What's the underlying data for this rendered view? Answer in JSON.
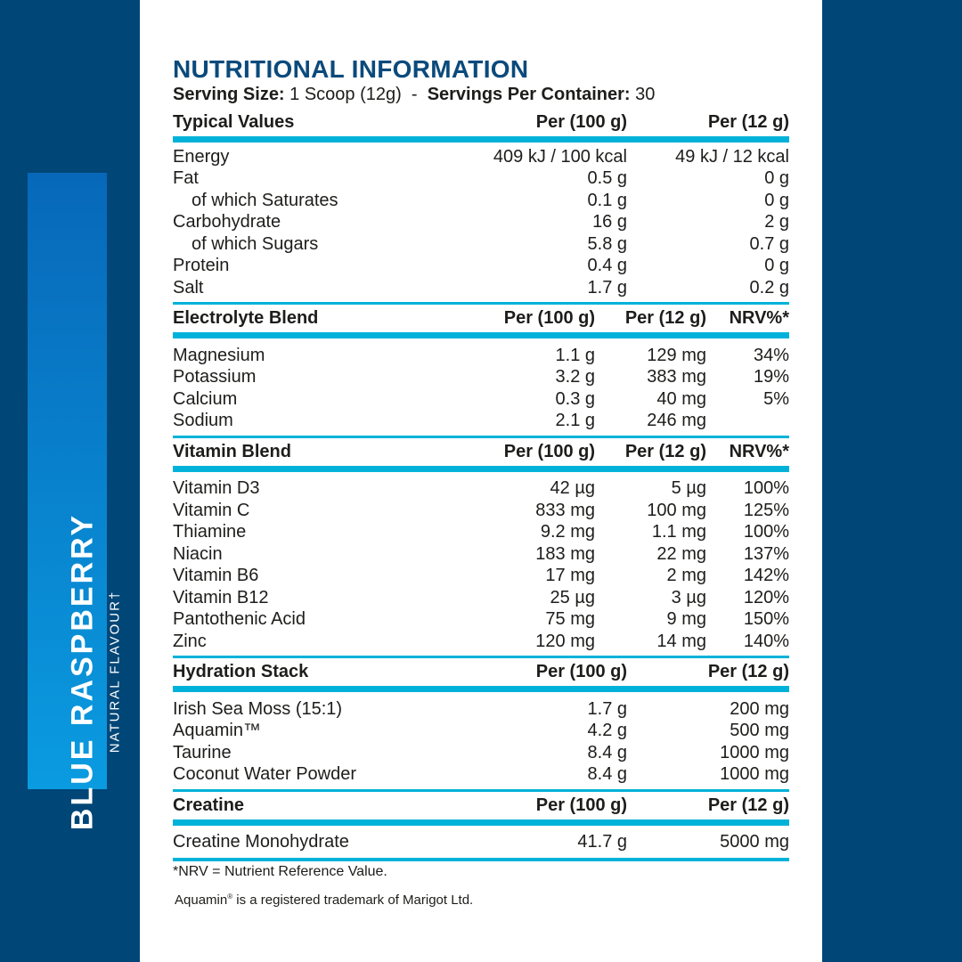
{
  "side_label": {
    "product": "BLUE RASPBERRY",
    "flavour": "NATURAL FLAVOUR†"
  },
  "title": "NUTRITIONAL INFORMATION",
  "serving": {
    "size_label": "Serving Size:",
    "size_value": " 1 Scoop (12g)  -  ",
    "servings_label": "Servings Per Container:",
    "servings_value": " 30"
  },
  "sections": [
    {
      "heading": "Typical Values",
      "columns": [
        "Per (100 g)",
        "Per (12 g)"
      ],
      "rows": [
        {
          "name": "Energy",
          "values": [
            "409 kJ / 100 kcal",
            "49 kJ / 12 kcal"
          ]
        },
        {
          "name": "Fat",
          "values": [
            "0.5 g",
            "0 g"
          ]
        },
        {
          "name": "of which Saturates",
          "indent": true,
          "values": [
            "0.1 g",
            "0 g"
          ]
        },
        {
          "name": "Carbohydrate",
          "values": [
            "16 g",
            "2 g"
          ]
        },
        {
          "name": "of which Sugars",
          "indent": true,
          "values": [
            "5.8 g",
            "0.7 g"
          ]
        },
        {
          "name": "Protein",
          "values": [
            "0.4 g",
            "0 g"
          ]
        },
        {
          "name": "Salt",
          "values": [
            "1.7 g",
            "0.2 g"
          ]
        }
      ]
    },
    {
      "heading": "Electrolyte Blend",
      "columns": [
        "Per (100 g)",
        "Per (12 g)",
        "NRV%*"
      ],
      "rows": [
        {
          "name": "Magnesium",
          "values": [
            "1.1 g",
            "129 mg",
            "34%"
          ]
        },
        {
          "name": "Potassium",
          "values": [
            "3.2 g",
            "383 mg",
            "19%"
          ]
        },
        {
          "name": "Calcium",
          "values": [
            "0.3 g",
            "40 mg",
            "5%"
          ]
        },
        {
          "name": "Sodium",
          "values": [
            "2.1 g",
            "246 mg",
            ""
          ]
        }
      ]
    },
    {
      "heading": "Vitamin Blend",
      "columns": [
        "Per (100 g)",
        "Per (12 g)",
        "NRV%*"
      ],
      "rows": [
        {
          "name": "Vitamin D3",
          "values": [
            "42 µg",
            "5 µg",
            "100%"
          ]
        },
        {
          "name": "Vitamin C",
          "values": [
            "833 mg",
            "100 mg",
            "125%"
          ]
        },
        {
          "name": "Thiamine",
          "values": [
            "9.2 mg",
            "1.1 mg",
            "100%"
          ]
        },
        {
          "name": "Niacin",
          "values": [
            "183 mg",
            "22 mg",
            "137%"
          ]
        },
        {
          "name": "Vitamin B6",
          "values": [
            "17 mg",
            "2 mg",
            "142%"
          ]
        },
        {
          "name": "Vitamin B12",
          "values": [
            "25 µg",
            "3 µg",
            "120%"
          ]
        },
        {
          "name": "Pantothenic Acid",
          "values": [
            "75 mg",
            "9 mg",
            "150%"
          ]
        },
        {
          "name": "Zinc",
          "values": [
            "120 mg",
            "14 mg",
            "140%"
          ]
        }
      ]
    },
    {
      "heading": "Hydration Stack",
      "columns": [
        "Per (100 g)",
        "Per (12 g)"
      ],
      "rows": [
        {
          "name": "Irish Sea Moss (15:1)",
          "values": [
            "1.7 g",
            "200 mg"
          ]
        },
        {
          "name": "Aquamin™",
          "values": [
            "4.2 g",
            "500 mg"
          ]
        },
        {
          "name": "Taurine",
          "values": [
            "8.4 g",
            "1000 mg"
          ]
        },
        {
          "name": "Coconut Water Powder",
          "values": [
            "8.4 g",
            "1000 mg"
          ]
        }
      ]
    },
    {
      "heading": "Creatine",
      "columns": [
        "Per (100 g)",
        "Per (12 g)"
      ],
      "rows": [
        {
          "name": "Creatine Monohydrate",
          "values": [
            "41.7 g",
            "5000 mg"
          ]
        }
      ]
    }
  ],
  "footnotes": {
    "nrv": "*NRV = Nutrient Reference Value.",
    "aquamin_word": "Aquamin",
    "aquamin_mark": "®",
    "aquamin_rest": " is a registered trademark of Marigot Ltd."
  },
  "colors": {
    "background": "#004677",
    "accent": "#00b2d9",
    "title": "#0b4a7c",
    "strip_top": "#0768b9",
    "strip_bottom": "#0a9be0"
  }
}
